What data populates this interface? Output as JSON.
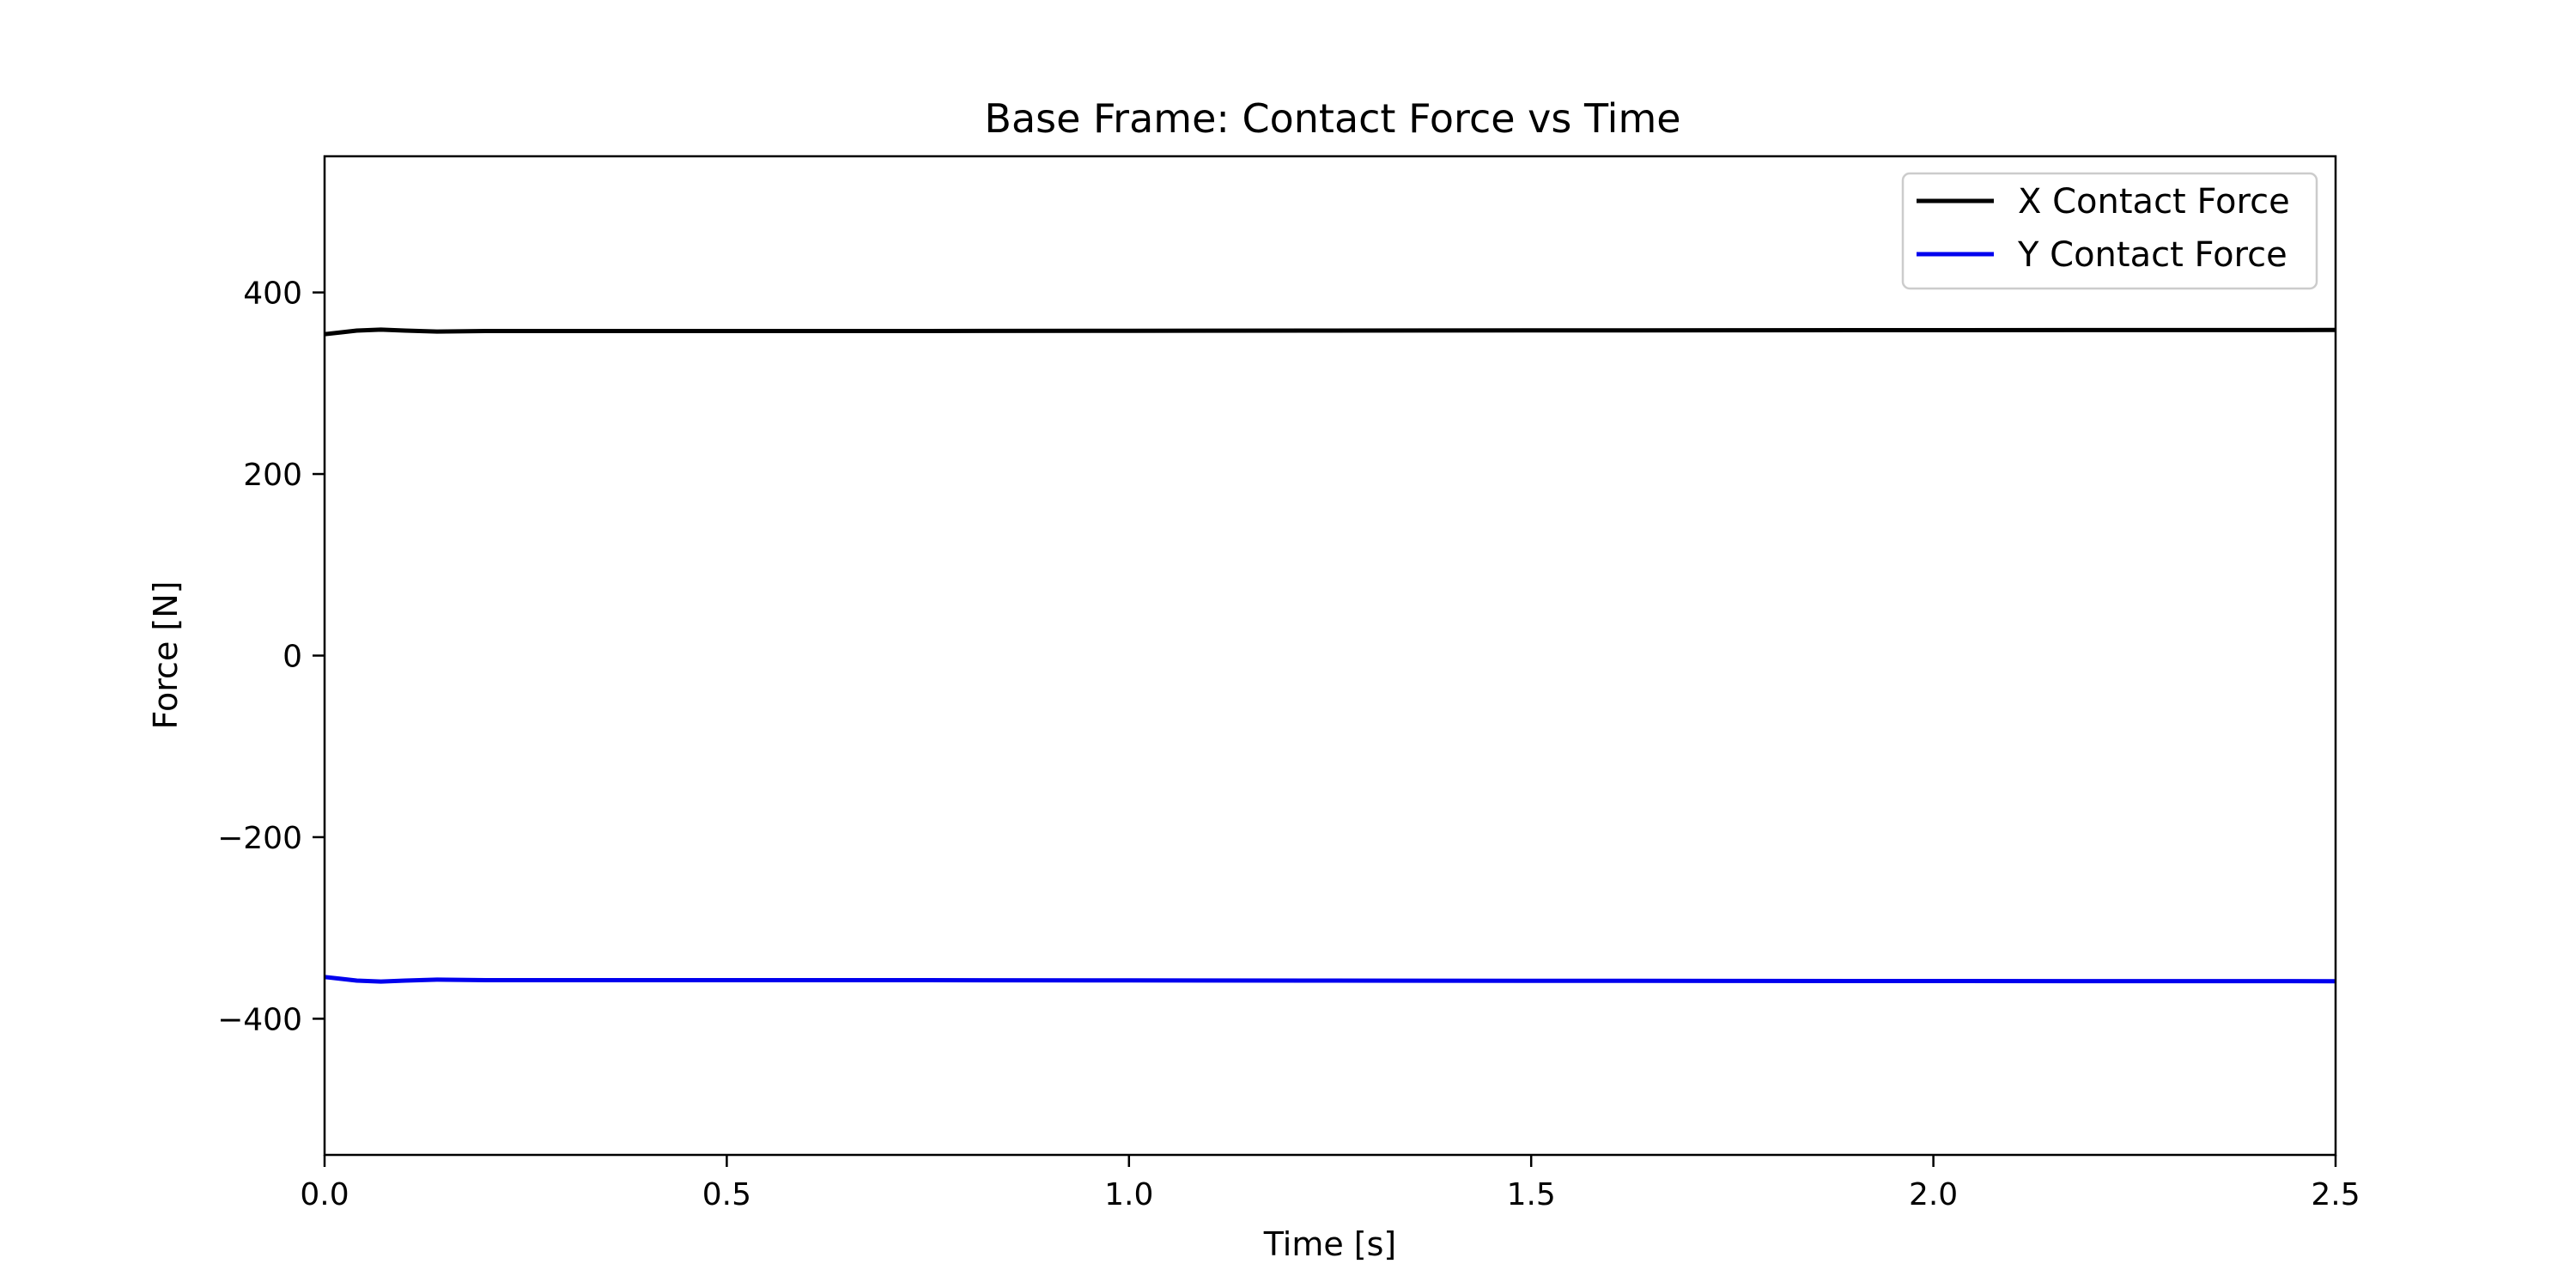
{
  "chart_data": {
    "type": "line",
    "title": "Base Frame: Contact Force vs Time",
    "xlabel": "Time [s]",
    "ylabel": "Force [N]",
    "xlim": [
      0.0,
      2.5
    ],
    "ylim": [
      -550,
      550
    ],
    "xticks": [
      0.0,
      0.5,
      1.0,
      1.5,
      2.0,
      2.5
    ],
    "xtick_labels": [
      "0.0",
      "0.5",
      "1.0",
      "1.5",
      "2.0",
      "2.5"
    ],
    "yticks": [
      -400,
      -200,
      0,
      200,
      400
    ],
    "ytick_labels": [
      "−400",
      "−200",
      "0",
      "200",
      "400"
    ],
    "grid": false,
    "legend": {
      "placement": "top-right"
    },
    "series": [
      {
        "name": "X Contact Force",
        "color": "#000000",
        "x": [
          0.0,
          0.02,
          0.04,
          0.07,
          0.1,
          0.14,
          0.2,
          0.3,
          0.5,
          0.75,
          1.0,
          1.25,
          1.5,
          1.75,
          2.0,
          2.25,
          2.5
        ],
        "y": [
          354,
          356,
          358,
          359,
          358,
          357,
          357.5,
          357.5,
          357.5,
          357.5,
          357.8,
          358,
          358.2,
          358.4,
          358.5,
          358.6,
          358.7
        ]
      },
      {
        "name": "Y Contact Force",
        "color": "#0000ee",
        "x": [
          0.0,
          0.02,
          0.04,
          0.07,
          0.1,
          0.14,
          0.2,
          0.3,
          0.5,
          0.75,
          1.0,
          1.25,
          1.5,
          1.75,
          2.0,
          2.25,
          2.5
        ],
        "y": [
          -354,
          -356,
          -358,
          -359,
          -358,
          -357,
          -357.5,
          -357.5,
          -357.5,
          -357.5,
          -357.8,
          -358,
          -358.2,
          -358.4,
          -358.5,
          -358.6,
          -358.7
        ]
      }
    ]
  }
}
